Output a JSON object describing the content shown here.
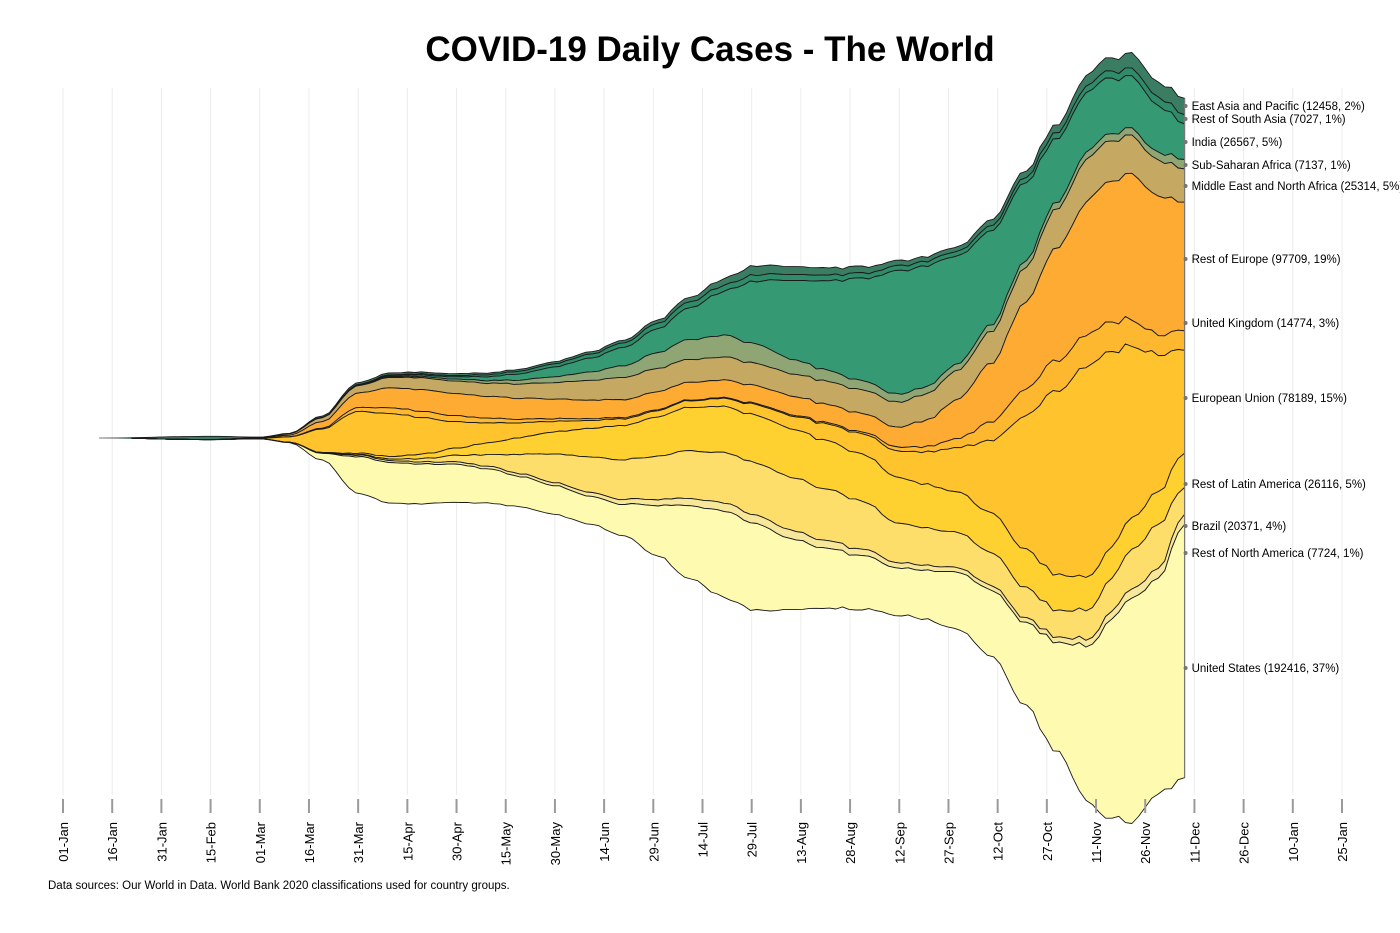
{
  "chart_data": {
    "type": "area",
    "subtype": "streamgraph",
    "title": "COVID-19 Daily Cases - The World",
    "xlabel": "",
    "ylabel": "",
    "source_note": "Data sources: Our World in Data. World Bank 2020 classifications used for country groups.",
    "x_range": [
      "2020-01-01",
      "2021-01-25"
    ],
    "x_ticks": [
      "01-Jan",
      "16-Jan",
      "31-Jan",
      "15-Feb",
      "01-Mar",
      "16-Mar",
      "31-Mar",
      "15-Apr",
      "30-Apr",
      "15-May",
      "30-May",
      "14-Jun",
      "29-Jun",
      "14-Jul",
      "29-Jul",
      "13-Aug",
      "28-Aug",
      "12-Sep",
      "27-Sep",
      "12-Oct",
      "27-Oct",
      "11-Nov",
      "26-Nov",
      "11-Dec",
      "26-Dec",
      "10-Jan",
      "25-Jan"
    ],
    "grid": "vertical",
    "legend": "right (labels at series end)",
    "x": [
      "2020-01-22",
      "2020-02-05",
      "2020-02-15",
      "2020-03-01",
      "2020-03-10",
      "2020-03-20",
      "2020-03-31",
      "2020-04-10",
      "2020-04-20",
      "2020-04-30",
      "2020-05-10",
      "2020-05-20",
      "2020-05-30",
      "2020-06-10",
      "2020-06-20",
      "2020-06-30",
      "2020-07-10",
      "2020-07-20",
      "2020-07-30",
      "2020-08-10",
      "2020-08-20",
      "2020-08-30",
      "2020-09-12",
      "2020-09-20",
      "2020-09-30",
      "2020-10-10",
      "2020-10-20",
      "2020-10-30",
      "2020-11-08",
      "2020-11-15",
      "2020-11-22",
      "2020-11-30",
      "2020-12-08"
    ],
    "units": "daily new cases (7-day average, thousands)",
    "series": [
      {
        "name": "East Asia and Pacific",
        "latest": 12458,
        "share": "2%",
        "color": "#3a7d63",
        "values": [
          0.5,
          2.0,
          2.5,
          0.6,
          0.4,
          1.0,
          1.4,
          1.5,
          1.4,
          1.4,
          1.4,
          1.5,
          1.6,
          1.8,
          2.0,
          2.5,
          3.5,
          5.0,
          7.0,
          6.0,
          5.5,
          5.0,
          4.0,
          3.5,
          3.5,
          4.5,
          5.0,
          6.0,
          8.0,
          10.0,
          11.5,
          11.5,
          12.5
        ]
      },
      {
        "name": "Rest of South Asia",
        "latest": 7027,
        "share": "1%",
        "color": "#2e8c6a",
        "values": [
          0,
          0,
          0,
          0,
          0,
          0.1,
          0.3,
          0.5,
          0.8,
          1.0,
          1.5,
          2.0,
          2.5,
          3.0,
          3.5,
          4.0,
          4.5,
          4.5,
          4.8,
          4.5,
          4.5,
          4.0,
          3.8,
          3.5,
          3.5,
          3.8,
          4.0,
          4.5,
          5.0,
          5.5,
          6.0,
          6.5,
          7.0
        ]
      },
      {
        "name": "India",
        "latest": 26567,
        "share": "5%",
        "color": "#359a74",
        "values": [
          0,
          0,
          0,
          0,
          0,
          0.1,
          0.2,
          0.8,
          1.2,
          1.8,
          3.0,
          5.0,
          7.5,
          10.5,
          14.0,
          18.0,
          24.0,
          33.0,
          48.0,
          60.0,
          67.0,
          76.0,
          93.0,
          92.0,
          82.0,
          72.0,
          60.0,
          48.0,
          46.0,
          42.0,
          40.0,
          36.0,
          27.0
        ]
      },
      {
        "name": "Sub-Saharan Africa",
        "latest": 7137,
        "share": "1%",
        "color": "#8fa674",
        "values": [
          0,
          0,
          0,
          0,
          0,
          0.1,
          0.4,
          0.7,
          1.0,
          1.5,
          2.0,
          3.0,
          4.5,
          6.5,
          9.0,
          12.0,
          15.0,
          16.5,
          15.0,
          11.0,
          8.5,
          7.0,
          6.0,
          5.5,
          5.0,
          5.0,
          5.0,
          5.0,
          5.5,
          5.5,
          5.5,
          6.0,
          7.2
        ]
      },
      {
        "name": "Middle East and North Africa",
        "latest": 25314,
        "share": "5%",
        "color": "#c5a963",
        "values": [
          0,
          0,
          0,
          0.1,
          1.0,
          3.0,
          5.5,
          8.0,
          9.0,
          9.5,
          10.0,
          11.0,
          12.5,
          15.0,
          17.0,
          17.5,
          17.5,
          17.5,
          17.0,
          17.0,
          17.5,
          18.0,
          19.0,
          20.0,
          22.0,
          24.0,
          26.5,
          30.0,
          32.0,
          31.0,
          29.0,
          27.0,
          25.3
        ]
      },
      {
        "name": "Rest of Europe",
        "latest": 97709,
        "share": "19%",
        "color": "#fdab32",
        "values": [
          0,
          0,
          0,
          0.2,
          1.2,
          5.0,
          11.0,
          15.0,
          16.5,
          17.0,
          16.5,
          16.0,
          15.0,
          14.0,
          13.5,
          13.5,
          13.5,
          13.5,
          13.5,
          14.0,
          14.0,
          14.0,
          15.0,
          20.0,
          30.0,
          45.0,
          65.0,
          85.0,
          100.0,
          108.0,
          110.0,
          105.0,
          97.7
        ]
      },
      {
        "name": "United Kingdom",
        "latest": 14774,
        "share": "3%",
        "color": "#fdb830",
        "values": [
          0,
          0,
          0,
          0,
          0.1,
          0.7,
          3.0,
          4.5,
          4.8,
          4.5,
          3.5,
          2.7,
          2.0,
          1.4,
          1.0,
          0.8,
          0.6,
          0.6,
          0.8,
          0.9,
          1.0,
          1.2,
          3.0,
          4.0,
          7.0,
          14.0,
          20.0,
          23.0,
          24.0,
          23.0,
          20.0,
          15.0,
          14.8
        ]
      },
      {
        "name": "European Union",
        "latest": 78189,
        "share": "15%",
        "color": "#fec32d",
        "values": [
          0,
          0,
          0.1,
          0.3,
          4.0,
          18.0,
          32.0,
          33.0,
          27.0,
          20.0,
          15.0,
          11.0,
          8.0,
          6.0,
          5.0,
          4.8,
          5.0,
          6.0,
          8.0,
          10.0,
          12.5,
          15.0,
          20.0,
          25.0,
          34.0,
          55.0,
          100.0,
          140.0,
          160.0,
          150.0,
          130.0,
          105.0,
          78.2
        ]
      },
      {
        "name": "Rest of Latin America",
        "latest": 26116,
        "share": "5%",
        "color": "#fed030",
        "values": [
          0,
          0,
          0,
          0,
          0,
          0.2,
          1.0,
          2.0,
          3.5,
          5.5,
          9.0,
          13.0,
          17.0,
          22.0,
          26.0,
          30.0,
          33.0,
          35.0,
          36.0,
          37.0,
          37.0,
          36.0,
          35.0,
          33.0,
          31.0,
          30.0,
          29.0,
          27.0,
          25.0,
          24.0,
          24.0,
          25.0,
          26.1
        ]
      },
      {
        "name": "Brazil",
        "latest": 20371,
        "share": "4%",
        "color": "#fede6b",
        "values": [
          0,
          0,
          0,
          0,
          0,
          0.1,
          0.4,
          1.2,
          2.5,
          5.0,
          9.0,
          15.0,
          22.0,
          27.0,
          30.0,
          33.0,
          36.0,
          38.0,
          40.0,
          40.0,
          39.0,
          37.0,
          30.0,
          28.0,
          27.0,
          25.0,
          23.0,
          20.0,
          22.0,
          25.0,
          30.0,
          33.0,
          20.4
        ]
      },
      {
        "name": "Rest of North America",
        "latest": 7724,
        "share": "1%",
        "color": "#f6e79a",
        "values": [
          0,
          0,
          0,
          0,
          0.1,
          0.4,
          1.2,
          1.5,
          1.6,
          1.8,
          2.0,
          2.2,
          2.3,
          3.0,
          3.7,
          4.5,
          5.5,
          6.2,
          6.5,
          6.5,
          6.0,
          5.0,
          4.0,
          3.8,
          3.5,
          3.5,
          3.5,
          4.0,
          5.0,
          6.0,
          7.0,
          7.5,
          7.7
        ]
      },
      {
        "name": "United States",
        "latest": 192416,
        "share": "37%",
        "color": "#fefbb0",
        "values": [
          0,
          0,
          0,
          0.1,
          0.3,
          5.0,
          28.0,
          31.0,
          30.0,
          29.0,
          26.0,
          23.0,
          22.0,
          21.0,
          24.0,
          38.0,
          55.0,
          66.0,
          66.0,
          54.0,
          46.0,
          41.0,
          36.0,
          37.0,
          43.0,
          50.0,
          62.0,
          83.0,
          115.0,
          150.0,
          170.0,
          165.0,
          192.4
        ]
      }
    ]
  }
}
